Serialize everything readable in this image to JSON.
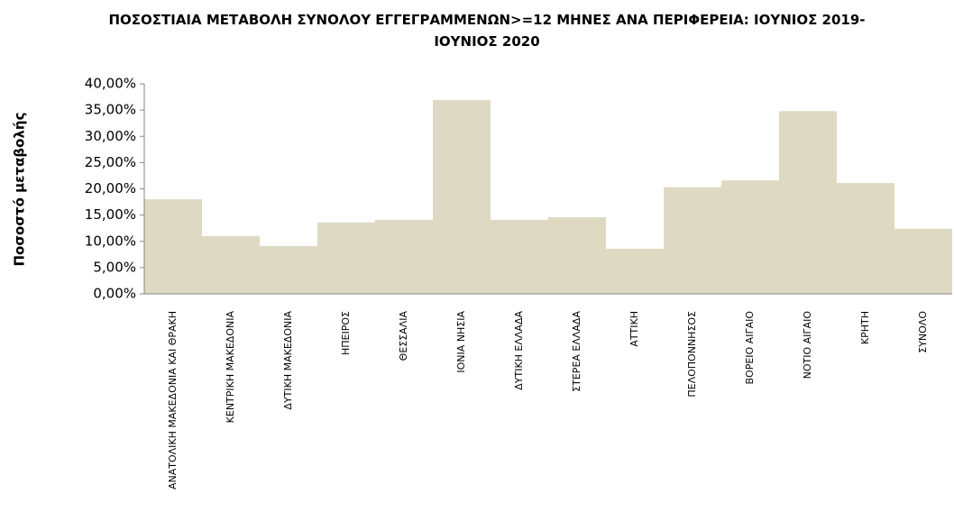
{
  "chart_data": {
    "type": "bar",
    "title": "ΠΟΣΟΣΤΙΑΙΑ ΜΕΤΑΒΟΛΗ  ΣΥΝΟΛΟΥ ΕΓΓΕΓΡΑΜΜΕΝΩΝ>=12 ΜΗΝΕΣ ΑΝΑ ΠΕΡΙΦΕΡΕΙΑ: ΙΟΥΝΙΟΣ 2019-ΙΟΥΝΙΟΣ  2020",
    "y_label": "Ποσοστό μεταβολής",
    "categories": [
      "ΑΝΑΤΟΛΙΚΗ ΜΑΚΕΔΟΝΙΑ ΚΑΙ ΘΡΑΚΗ",
      "ΚΕΝΤΡΙΚΗ ΜΑΚΕΔΟΝΙΑ",
      "ΔΥΤΙΚΗ ΜΑΚΕΔΟΝΙΑ",
      "ΗΠΕΙΡΟΣ",
      "ΘΕΣΣΑΛΙΑ",
      "ΙΟΝΙΑ ΝΗΣΙΑ",
      "ΔΥΤΙΚΗ ΕΛΛΑΔΑ",
      "ΣΤΕΡΕΑ ΕΛΛΑΔΑ",
      "ΑΤΤΙΚΗ",
      "ΠΕΛΟΠΟΝΝΗΣΟΣ",
      "ΒΟΡΕΙΟ ΑΙΓΑΙΟ",
      "ΝΟΤΙΟ ΑΙΓΑΙΟ",
      "ΚΡΗΤΗ",
      "ΣΥΝΟΛΟ"
    ],
    "values": [
      18.0,
      11.0,
      9.1,
      13.6,
      14.1,
      36.9,
      14.1,
      14.6,
      8.6,
      20.3,
      21.6,
      34.8,
      21.1,
      12.4
    ],
    "color": "#ddd9c3",
    "ylim": [
      0,
      40
    ],
    "yticks": [
      {
        "value": 0,
        "label": "0,00%"
      },
      {
        "value": 5,
        "label": "5,00%"
      },
      {
        "value": 10,
        "label": "10,00%"
      },
      {
        "value": 15,
        "label": "15,00%"
      },
      {
        "value": 20,
        "label": "20,00%"
      },
      {
        "value": 25,
        "label": "25,00%"
      },
      {
        "value": 30,
        "label": "30,00%"
      },
      {
        "value": 35,
        "label": "35,00%"
      },
      {
        "value": 40,
        "label": "40,00%"
      }
    ],
    "grid": false
  }
}
